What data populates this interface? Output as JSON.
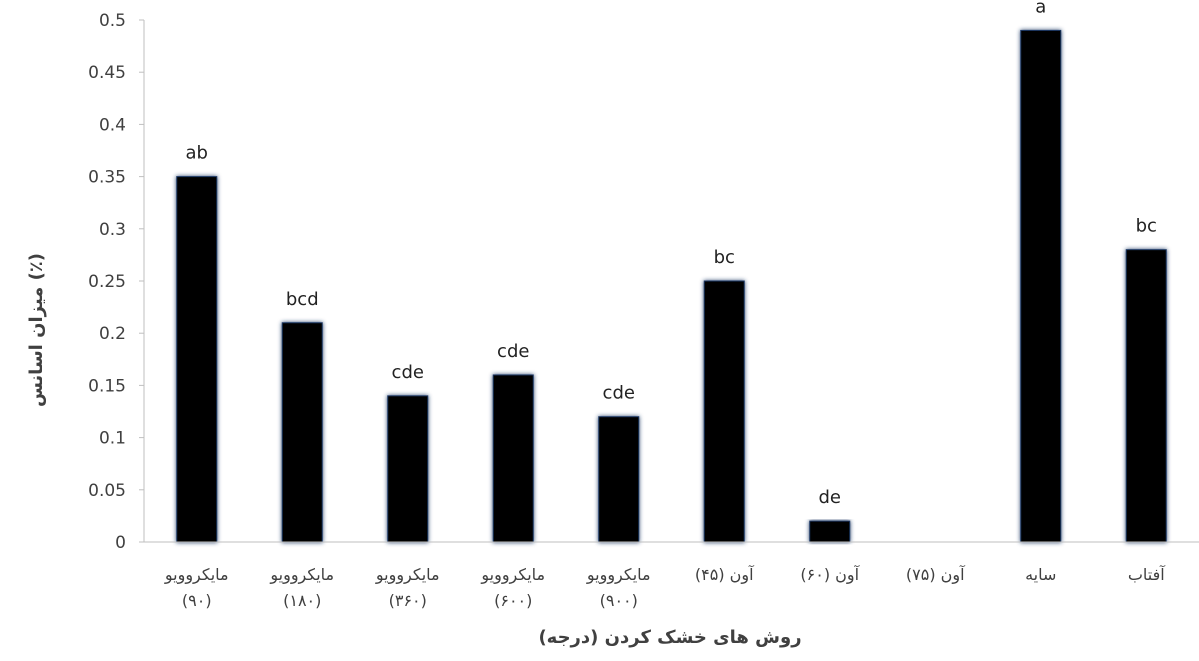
{
  "chart_data": {
    "type": "bar",
    "title": "",
    "xlabel": "روش های خشک کردن (درجه)",
    "ylabel": "(٪) میزان اسانس",
    "ylim": [
      0,
      0.5
    ],
    "yticks": [
      "0",
      "0.05",
      "0.1",
      "0.15",
      "0.2",
      "0.25",
      "0.3",
      "0.35",
      "0.4",
      "0.45",
      "0.5"
    ],
    "ytick_values": [
      0,
      0.05,
      0.1,
      0.15,
      0.2,
      0.25,
      0.3,
      0.35,
      0.4,
      0.45,
      0.5
    ],
    "categories": [
      [
        "مایکروویو",
        "(۹۰)"
      ],
      [
        "مایکروویو",
        "(۱۸۰)"
      ],
      [
        "مایکروویو",
        "(۳۶۰)"
      ],
      [
        "مایکروویو",
        "(۶۰۰)"
      ],
      [
        "مایکروویو",
        "(۹۰۰)"
      ],
      [
        "آون (۴۵)"
      ],
      [
        "آون (۶۰)"
      ],
      [
        "آون (۷۵)"
      ],
      [
        "سایه"
      ],
      [
        "آفتاب"
      ]
    ],
    "values": [
      0.35,
      0.21,
      0.14,
      0.16,
      0.12,
      0.25,
      0.02,
      0,
      0.49,
      0.28
    ],
    "data_labels": [
      "ab",
      "bcd",
      "cde",
      "cde",
      "cde",
      "bc",
      "de",
      "",
      "a",
      "bc"
    ],
    "grid": false,
    "legend": "none",
    "colors": {
      "bar": "#000000",
      "bar_glow": "#1f3864",
      "axis": "#bfbfbf",
      "text": "#404040"
    }
  }
}
